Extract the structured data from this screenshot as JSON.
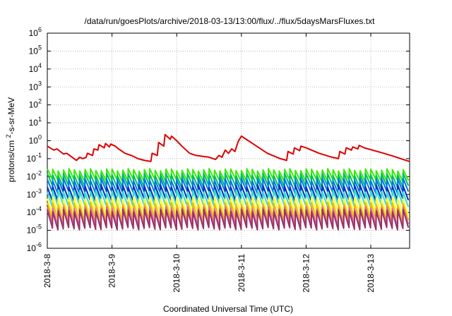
{
  "chart_data": {
    "type": "line",
    "title": "/data/run/goesPlots/archive/2018-03-13/13:00/flux/../flux/5daysMarsFluxes.txt",
    "xlabel": "Coordinated Universal Time (UTC)",
    "ylabel": "protons/cm²-s-sr-MeV",
    "y_scale": "log",
    "ylim": [
      1e-06,
      1000000.0
    ],
    "xlim": [
      0,
      5.6
    ],
    "grid": true,
    "y_ticks": [
      {
        "exp": -6,
        "label": "10",
        "sup": "-6"
      },
      {
        "exp": -5,
        "label": "10",
        "sup": "-5"
      },
      {
        "exp": -4,
        "label": "10",
        "sup": "-4"
      },
      {
        "exp": -3,
        "label": "10",
        "sup": "-3"
      },
      {
        "exp": -2,
        "label": "10",
        "sup": "-2"
      },
      {
        "exp": -1,
        "label": "10",
        "sup": "-1"
      },
      {
        "exp": 0,
        "label": "10",
        "sup": "0"
      },
      {
        "exp": 1,
        "label": "10",
        "sup": "1"
      },
      {
        "exp": 2,
        "label": "10",
        "sup": "2"
      },
      {
        "exp": 3,
        "label": "10",
        "sup": "3"
      },
      {
        "exp": 4,
        "label": "10",
        "sup": "4"
      },
      {
        "exp": 5,
        "label": "10",
        "sup": "5"
      },
      {
        "exp": 6,
        "label": "10",
        "sup": "6"
      }
    ],
    "x_ticks": [
      {
        "value": 0,
        "label": "2018-3-8"
      },
      {
        "value": 1,
        "label": "2018-3-9"
      },
      {
        "value": 2,
        "label": "2018-3-10"
      },
      {
        "value": 3,
        "label": "2018-3-11"
      },
      {
        "value": 4,
        "label": "2018-3-12"
      },
      {
        "value": 5,
        "label": "2018-3-13"
      }
    ],
    "series": [
      {
        "color": "#dd0000",
        "x": [
          0.0,
          0.1,
          0.15,
          0.25,
          0.3,
          0.45,
          0.5,
          0.55,
          0.6,
          0.62,
          0.7,
          0.72,
          0.78,
          0.8,
          0.88,
          0.9,
          0.96,
          0.98,
          1.05,
          1.1,
          1.2,
          1.3,
          1.4,
          1.5,
          1.6,
          1.62,
          1.7,
          1.72,
          1.8,
          1.82,
          1.9,
          1.92,
          2.0,
          2.08,
          2.2,
          2.3,
          2.5,
          2.6,
          2.65,
          2.7,
          2.75,
          2.8,
          2.85,
          2.9,
          2.95,
          3.0,
          3.2,
          3.4,
          3.6,
          3.7,
          3.72,
          3.8,
          3.82,
          3.9,
          3.92,
          4.0,
          4.2,
          4.4,
          4.5,
          4.52,
          4.6,
          4.62,
          4.7,
          4.72,
          4.8,
          4.82,
          4.9,
          5.2,
          5.4,
          5.5,
          5.6
        ],
        "y": [
          0.5,
          0.3,
          0.35,
          0.18,
          0.2,
          0.08,
          0.12,
          0.1,
          0.12,
          0.2,
          0.15,
          0.35,
          0.3,
          0.6,
          0.4,
          0.7,
          0.45,
          0.65,
          0.5,
          0.35,
          0.2,
          0.15,
          0.1,
          0.08,
          0.07,
          0.2,
          0.15,
          0.8,
          0.5,
          2.2,
          1.2,
          1.8,
          1.0,
          0.5,
          0.2,
          0.15,
          0.12,
          0.09,
          0.15,
          0.12,
          0.3,
          0.2,
          0.35,
          0.25,
          0.9,
          1.8,
          0.6,
          0.2,
          0.1,
          0.08,
          0.25,
          0.18,
          0.4,
          0.28,
          0.5,
          0.4,
          0.2,
          0.12,
          0.1,
          0.25,
          0.18,
          0.4,
          0.3,
          0.45,
          0.35,
          0.55,
          0.4,
          0.2,
          0.12,
          0.09,
          0.07
        ]
      },
      {
        "color": "#33ee00",
        "base": 0.012,
        "amp": 2.0
      },
      {
        "color": "#00bb66",
        "base": 0.006,
        "amp": 2.2
      },
      {
        "color": "#0077ee",
        "base": 0.003,
        "amp": 2.3
      },
      {
        "color": "#0033bb",
        "base": 0.0012,
        "amp": 2.5
      },
      {
        "color": "#33ddcc",
        "base": 0.0006,
        "amp": 2.6
      },
      {
        "color": "#ffff33",
        "base": 0.00022,
        "amp": 2.8
      },
      {
        "color": "#eebb00",
        "base": 0.00011,
        "amp": 2.9
      },
      {
        "color": "#dd66aa",
        "base": 6e-05,
        "amp": 3.0
      },
      {
        "color": "#993366",
        "base": 4e-05,
        "amp": 3.2
      }
    ]
  }
}
